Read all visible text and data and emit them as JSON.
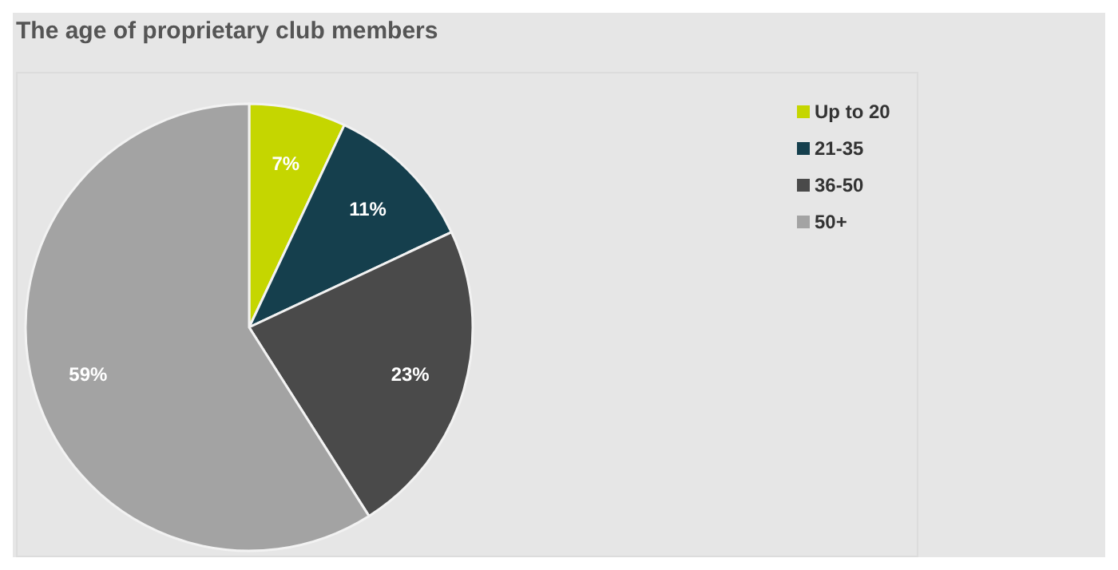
{
  "chart_data": {
    "type": "pie",
    "title": "The age of proprietary club members",
    "categories": [
      "Up to 20",
      "21-35",
      "36-50",
      "50+"
    ],
    "values": [
      7,
      11,
      23,
      59
    ],
    "colors": [
      "#c5d600",
      "#153f4d",
      "#4a4a4a",
      "#a3a3a3"
    ],
    "value_labels": [
      "7%",
      "11%",
      "23%",
      "59%"
    ],
    "legend": "top right"
  }
}
